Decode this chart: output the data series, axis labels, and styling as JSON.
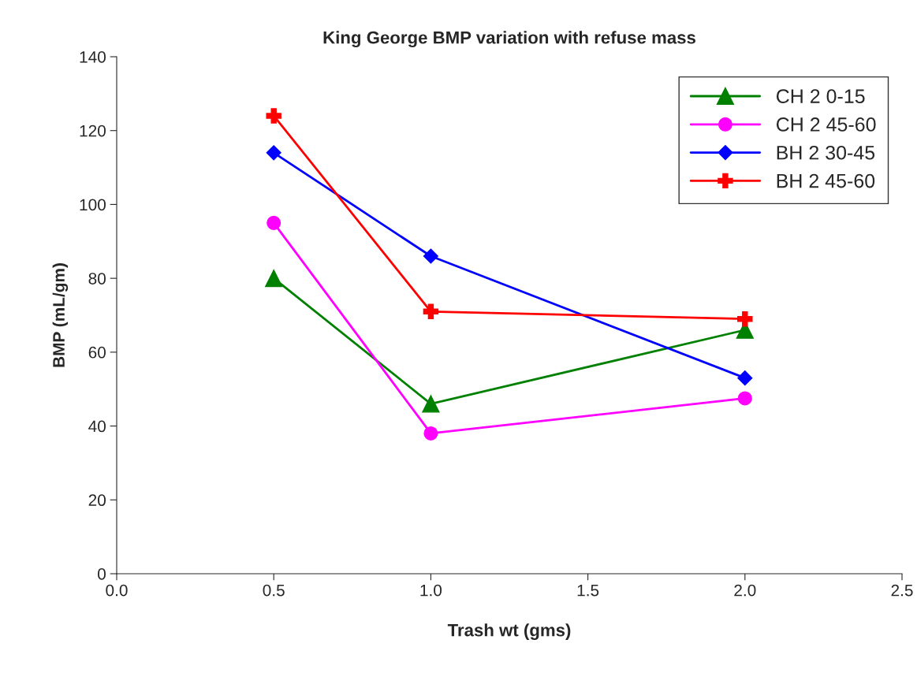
{
  "chart_data": {
    "type": "line",
    "title": "King George BMP variation with refuse mass",
    "xlabel": "Trash wt (gms)",
    "ylabel": "BMP (mL/gm)",
    "x": [
      0.5,
      1.0,
      2.0
    ],
    "series": [
      {
        "name": "CH 2 0-15",
        "color": "#008000",
        "marker": "triangle",
        "values": [
          80,
          46,
          66
        ]
      },
      {
        "name": "CH 2 45-60",
        "color": "#ff00ff",
        "marker": "circle",
        "values": [
          95,
          38,
          47.5
        ]
      },
      {
        "name": "BH 2 30-45",
        "color": "#0000ff",
        "marker": "diamond",
        "values": [
          114,
          86,
          53
        ]
      },
      {
        "name": "BH 2 45-60",
        "color": "#ff0000",
        "marker": "cross",
        "values": [
          124,
          71,
          69
        ]
      }
    ],
    "xlim": [
      0.0,
      2.5
    ],
    "xticks": [
      {
        "value": 0.0,
        "label": "0.0"
      },
      {
        "value": 0.5,
        "label": "0.5"
      },
      {
        "value": 1.0,
        "label": "1.0"
      },
      {
        "value": 1.5,
        "label": "1.5"
      },
      {
        "value": 2.0,
        "label": "2.0"
      },
      {
        "value": 2.5,
        "label": "2.5"
      }
    ],
    "ylim": [
      0,
      140
    ],
    "yticks": [
      0,
      20,
      40,
      60,
      80,
      100,
      120,
      140
    ],
    "grid": false,
    "legend": "top right"
  }
}
